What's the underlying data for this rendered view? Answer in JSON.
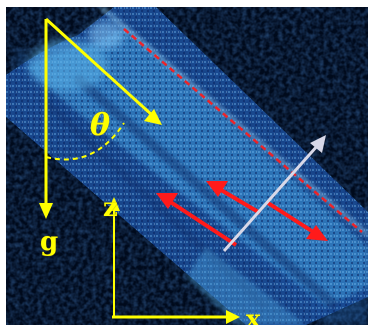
{
  "labels": {
    "theta": "θ",
    "g": "g",
    "z": "z",
    "x": "x"
  },
  "colors": {
    "background": "#000814",
    "annotation_yellow": "#ffff00",
    "arrow_red": "#ff1a1a",
    "arrow_white": "#d8d8e8",
    "tube_glow": "#3a8ccc"
  },
  "annotations": [
    "gravity-arrow-icon",
    "tilt-direction-arrow-icon",
    "tilt-angle-arc-icon",
    "z-axis-arrow-icon",
    "x-axis-arrow-icon",
    "flow-arrow-up-left-icon",
    "flow-arrow-down-right-icon",
    "flow-arrow-center-icon",
    "transverse-arrow-icon",
    "upper-wall-line-icon"
  ]
}
